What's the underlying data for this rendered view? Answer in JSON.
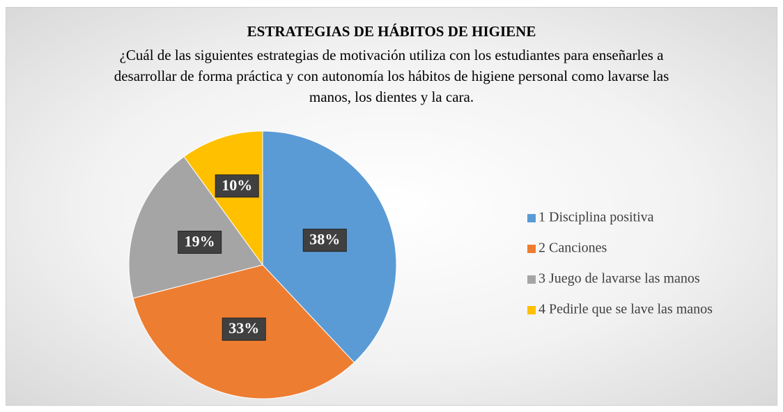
{
  "chart_data": {
    "type": "pie",
    "title": "ESTRATEGIAS DE HÁBITOS DE HIGIENE",
    "subtitle": "¿Cuál de las siguientes estrategias de motivación utiliza con los estudiantes para enseñarles a desarrollar de forma práctica y con autonomía los hábitos de higiene personal como lavarse las manos, los dientes y la cara.",
    "categories": [
      "1 Disciplina positiva",
      "2 Canciones",
      "3 Juego de lavarse las manos",
      "4 Pedirle que se lave las manos"
    ],
    "values": [
      38,
      33,
      19,
      10
    ],
    "value_labels": [
      "38%",
      "33%",
      "19%",
      "10%"
    ],
    "colors": [
      "#5b9bd5",
      "#ed7d31",
      "#a5a5a5",
      "#ffc000"
    ],
    "legend": "right"
  }
}
